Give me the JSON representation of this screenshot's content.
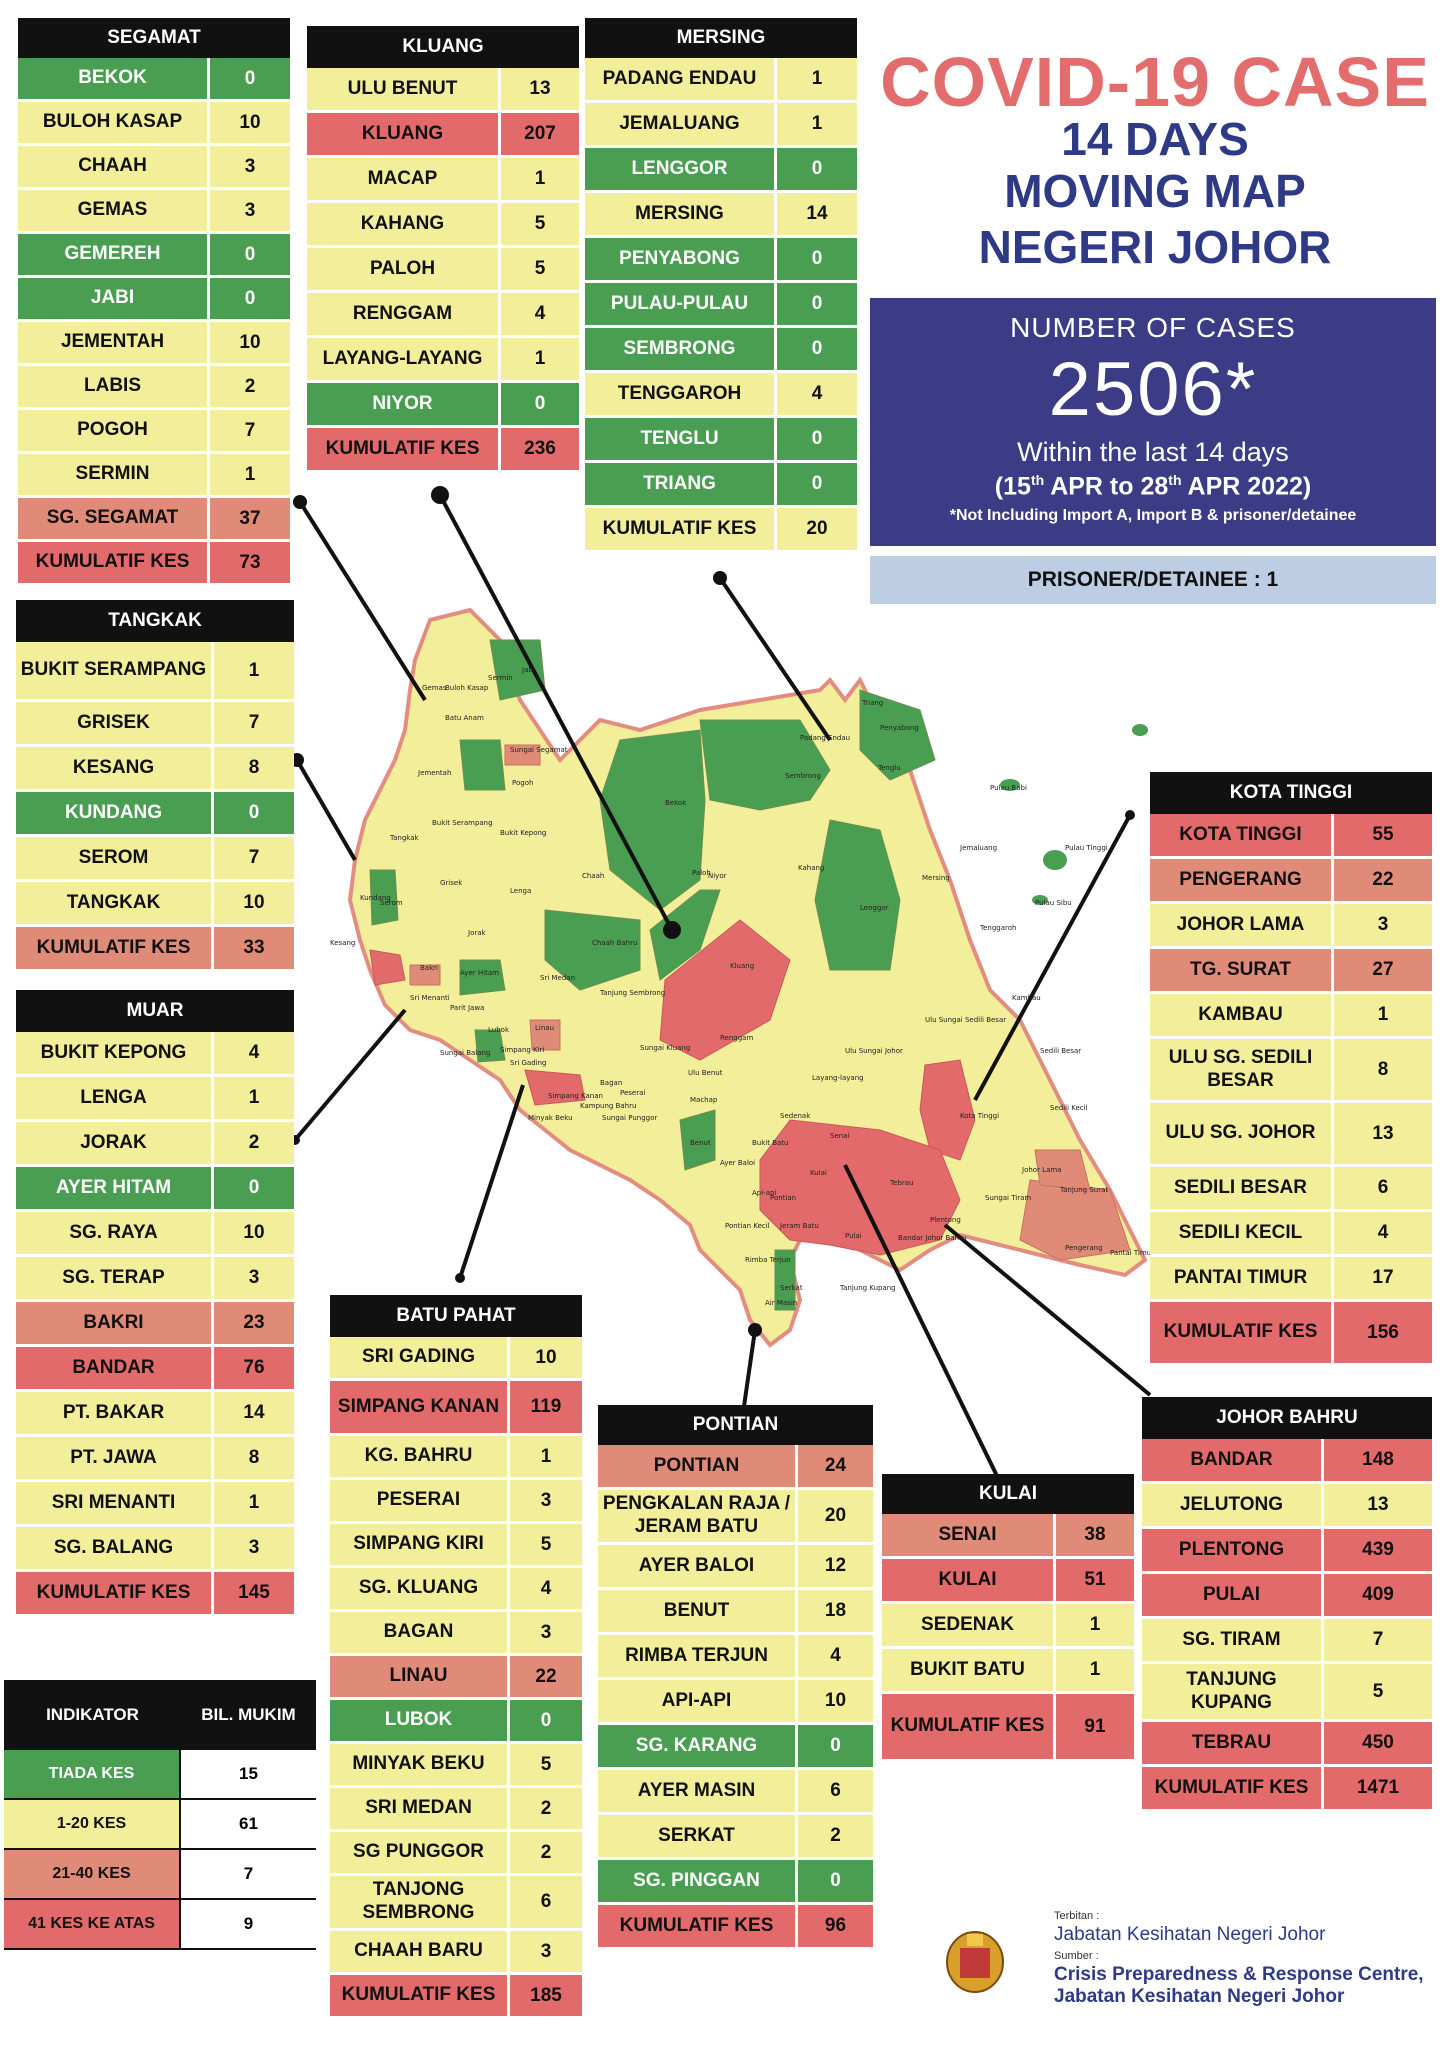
{
  "header": {
    "title": "COVID-19 CASE",
    "line2": "14 DAYS",
    "line3": "MOVING MAP",
    "line4": "NEGERI JOHOR"
  },
  "summary": {
    "label": "NUMBER OF CASES",
    "total": "2506*",
    "period_line1": "Within the last 14 days",
    "period_start": "15",
    "period_start_sup": "th",
    "period_start_month": "APR to",
    "period_end": "28",
    "period_end_sup": "th",
    "period_end_month": "APR 2022)",
    "period_open": "(",
    "note": "*Not Including Import A, Import B & prisoner/detainee",
    "prisoner": "PRISONER/DETAINEE : 1"
  },
  "colors": {
    "tiada_kes": "#4a9e52",
    "kes_1_20": "#f2ee9a",
    "kes_21_40": "#e08b78",
    "kes_41_atas": "#e36a6a",
    "title_red": "#e36d6d",
    "title_blue": "#2f3a86",
    "box_blue": "#3c3c86"
  },
  "districts": {
    "segamat": {
      "name": "SEGAMAT",
      "rows": [
        {
          "name": "BEKOK",
          "value": "0",
          "level": "green"
        },
        {
          "name": "BULOH KASAP",
          "value": "10",
          "level": "yellow"
        },
        {
          "name": "CHAAH",
          "value": "3",
          "level": "yellow"
        },
        {
          "name": "GEMAS",
          "value": "3",
          "level": "yellow"
        },
        {
          "name": "GEMEREH",
          "value": "0",
          "level": "green"
        },
        {
          "name": "JABI",
          "value": "0",
          "level": "green"
        },
        {
          "name": "JEMENTAH",
          "value": "10",
          "level": "yellow"
        },
        {
          "name": "LABIS",
          "value": "2",
          "level": "yellow"
        },
        {
          "name": "POGOH",
          "value": "7",
          "level": "yellow"
        },
        {
          "name": "SERMIN",
          "value": "1",
          "level": "yellow"
        },
        {
          "name": "SG. SEGAMAT",
          "value": "37",
          "level": "salmon"
        },
        {
          "name": "KUMULATIF KES",
          "value": "73",
          "level": "total"
        }
      ]
    },
    "kluang": {
      "name": "KLUANG",
      "rows": [
        {
          "name": "ULU BENUT",
          "value": "13",
          "level": "yellow"
        },
        {
          "name": "KLUANG",
          "value": "207",
          "level": "red"
        },
        {
          "name": "MACAP",
          "value": "1",
          "level": "yellow"
        },
        {
          "name": "KAHANG",
          "value": "5",
          "level": "yellow"
        },
        {
          "name": "PALOH",
          "value": "5",
          "level": "yellow"
        },
        {
          "name": "RENGGAM",
          "value": "4",
          "level": "yellow"
        },
        {
          "name": "LAYANG-LAYANG",
          "value": "1",
          "level": "yellow"
        },
        {
          "name": "NIYOR",
          "value": "0",
          "level": "green"
        },
        {
          "name": "KUMULATIF KES",
          "value": "236",
          "level": "total"
        }
      ]
    },
    "mersing": {
      "name": "MERSING",
      "rows": [
        {
          "name": "PADANG ENDAU",
          "value": "1",
          "level": "yellow"
        },
        {
          "name": "JEMALUANG",
          "value": "1",
          "level": "yellow"
        },
        {
          "name": "LENGGOR",
          "value": "0",
          "level": "green"
        },
        {
          "name": "MERSING",
          "value": "14",
          "level": "yellow"
        },
        {
          "name": "PENYABONG",
          "value": "0",
          "level": "green"
        },
        {
          "name": "PULAU-PULAU",
          "value": "0",
          "level": "green"
        },
        {
          "name": "SEMBRONG",
          "value": "0",
          "level": "green"
        },
        {
          "name": "TENGGAROH",
          "value": "4",
          "level": "yellow"
        },
        {
          "name": "TENGLU",
          "value": "0",
          "level": "green"
        },
        {
          "name": "TRIANG",
          "value": "0",
          "level": "green"
        },
        {
          "name": "KUMULATIF KES",
          "value": "20",
          "level": "yellow"
        }
      ]
    },
    "tangkak": {
      "name": "TANGKAK",
      "rows": [
        {
          "name": "BUKIT SERAMPANG",
          "value": "1",
          "level": "yellow"
        },
        {
          "name": "GRISEK",
          "value": "7",
          "level": "yellow"
        },
        {
          "name": "KESANG",
          "value": "8",
          "level": "yellow"
        },
        {
          "name": "KUNDANG",
          "value": "0",
          "level": "green"
        },
        {
          "name": "SEROM",
          "value": "7",
          "level": "yellow"
        },
        {
          "name": "TANGKAK",
          "value": "10",
          "level": "yellow"
        },
        {
          "name": "KUMULATIF KES",
          "value": "33",
          "level": "salmon"
        }
      ]
    },
    "muar": {
      "name": "MUAR",
      "rows": [
        {
          "name": "BUKIT KEPONG",
          "value": "4",
          "level": "yellow"
        },
        {
          "name": "LENGA",
          "value": "1",
          "level": "yellow"
        },
        {
          "name": "JORAK",
          "value": "2",
          "level": "yellow"
        },
        {
          "name": "AYER HITAM",
          "value": "0",
          "level": "green"
        },
        {
          "name": "SG. RAYA",
          "value": "10",
          "level": "yellow"
        },
        {
          "name": "SG. TERAP",
          "value": "3",
          "level": "yellow"
        },
        {
          "name": "BAKRI",
          "value": "23",
          "level": "salmon"
        },
        {
          "name": "BANDAR",
          "value": "76",
          "level": "red"
        },
        {
          "name": "PT. BAKAR",
          "value": "14",
          "level": "yellow"
        },
        {
          "name": "PT. JAWA",
          "value": "8",
          "level": "yellow"
        },
        {
          "name": "SRI MENANTI",
          "value": "1",
          "level": "yellow"
        },
        {
          "name": "SG. BALANG",
          "value": "3",
          "level": "yellow"
        },
        {
          "name": "KUMULATIF KES",
          "value": "145",
          "level": "total"
        }
      ]
    },
    "batu_pahat": {
      "name": "BATU PAHAT",
      "rows": [
        {
          "name": "SRI GADING",
          "value": "10",
          "level": "yellow"
        },
        {
          "name": "SIMPANG KANAN",
          "value": "119",
          "level": "red"
        },
        {
          "name": "KG. BAHRU",
          "value": "1",
          "level": "yellow"
        },
        {
          "name": "PESERAI",
          "value": "3",
          "level": "yellow"
        },
        {
          "name": "SIMPANG KIRI",
          "value": "5",
          "level": "yellow"
        },
        {
          "name": "SG. KLUANG",
          "value": "4",
          "level": "yellow"
        },
        {
          "name": "BAGAN",
          "value": "3",
          "level": "yellow"
        },
        {
          "name": "LINAU",
          "value": "22",
          "level": "salmon"
        },
        {
          "name": "LUBOK",
          "value": "0",
          "level": "green"
        },
        {
          "name": "MINYAK BEKU",
          "value": "5",
          "level": "yellow"
        },
        {
          "name": "SRI MEDAN",
          "value": "2",
          "level": "yellow"
        },
        {
          "name": "SG PUNGGOR",
          "value": "2",
          "level": "yellow"
        },
        {
          "name": "TANJONG SEMBRONG",
          "value": "6",
          "level": "yellow"
        },
        {
          "name": "CHAAH BARU",
          "value": "3",
          "level": "yellow"
        },
        {
          "name": "KUMULATIF KES",
          "value": "185",
          "level": "total"
        }
      ]
    },
    "pontian": {
      "name": "PONTIAN",
      "rows": [
        {
          "name": "PONTIAN",
          "value": "24",
          "level": "salmon"
        },
        {
          "name": "PENGKALAN RAJA / JERAM BATU",
          "value": "20",
          "level": "yellow"
        },
        {
          "name": "AYER BALOI",
          "value": "12",
          "level": "yellow"
        },
        {
          "name": "BENUT",
          "value": "18",
          "level": "yellow"
        },
        {
          "name": "RIMBA TERJUN",
          "value": "4",
          "level": "yellow"
        },
        {
          "name": "API-API",
          "value": "10",
          "level": "yellow"
        },
        {
          "name": "SG. KARANG",
          "value": "0",
          "level": "green"
        },
        {
          "name": "AYER MASIN",
          "value": "6",
          "level": "yellow"
        },
        {
          "name": "SERKAT",
          "value": "2",
          "level": "yellow"
        },
        {
          "name": "SG. PINGGAN",
          "value": "0",
          "level": "green"
        },
        {
          "name": "KUMULATIF KES",
          "value": "96",
          "level": "total"
        }
      ]
    },
    "kulai": {
      "name": "KULAI",
      "rows": [
        {
          "name": "SENAI",
          "value": "38",
          "level": "salmon"
        },
        {
          "name": "KULAI",
          "value": "51",
          "level": "red"
        },
        {
          "name": "SEDENAK",
          "value": "1",
          "level": "yellow"
        },
        {
          "name": "BUKIT BATU",
          "value": "1",
          "level": "yellow"
        },
        {
          "name": "KUMULATIF KES",
          "value": "91",
          "level": "total"
        }
      ]
    },
    "kota_tinggi": {
      "name": "KOTA TINGGI",
      "rows": [
        {
          "name": "KOTA TINGGI",
          "value": "55",
          "level": "red"
        },
        {
          "name": "PENGERANG",
          "value": "22",
          "level": "salmon"
        },
        {
          "name": "JOHOR LAMA",
          "value": "3",
          "level": "yellow"
        },
        {
          "name": "TG. SURAT",
          "value": "27",
          "level": "salmon"
        },
        {
          "name": "KAMBAU",
          "value": "1",
          "level": "yellow"
        },
        {
          "name": "ULU SG. SEDILI BESAR",
          "value": "8",
          "level": "yellow"
        },
        {
          "name": "ULU  SG. JOHOR",
          "value": "13",
          "level": "yellow"
        },
        {
          "name": "SEDILI BESAR",
          "value": "6",
          "level": "yellow"
        },
        {
          "name": "SEDILI KECIL",
          "value": "4",
          "level": "yellow"
        },
        {
          "name": "PANTAI TIMUR",
          "value": "17",
          "level": "yellow"
        },
        {
          "name": "KUMULATIF KES",
          "value": "156",
          "level": "total"
        }
      ]
    },
    "johor_bahru": {
      "name": "JOHOR BAHRU",
      "rows": [
        {
          "name": "BANDAR",
          "value": "148",
          "level": "red"
        },
        {
          "name": "JELUTONG",
          "value": "13",
          "level": "yellow"
        },
        {
          "name": "PLENTONG",
          "value": "439",
          "level": "red"
        },
        {
          "name": "PULAI",
          "value": "409",
          "level": "red"
        },
        {
          "name": "SG. TIRAM",
          "value": "7",
          "level": "yellow"
        },
        {
          "name": "TANJUNG KUPANG",
          "value": "5",
          "level": "yellow"
        },
        {
          "name": "TEBRAU",
          "value": "450",
          "level": "red"
        },
        {
          "name": "KUMULATIF KES",
          "value": "1471",
          "level": "total"
        }
      ]
    }
  },
  "indicator": {
    "col1": "INDIKATOR",
    "col2": "BIL. MUKIM",
    "rows": [
      {
        "label": "TIADA KES",
        "count": "15",
        "level": "green"
      },
      {
        "label": "1-20 KES",
        "count": "61",
        "level": "yellow"
      },
      {
        "label": "21-40 KES",
        "count": "7",
        "level": "salmon"
      },
      {
        "label": "41 KES KE ATAS",
        "count": "9",
        "level": "red"
      }
    ]
  },
  "footer": {
    "terbitan_label": "Terbitan :",
    "terbitan": "Jabatan Kesihatan Negeri Johor",
    "sumber_label": "Sumber :",
    "sumber1": "Crisis Preparedness & Response Centre,",
    "sumber2": "Jabatan Kesihatan Negeri Johor"
  },
  "map_labels": [
    "Gemas",
    "Buloh Kasap",
    "Sermin",
    "Batu Anam",
    "Jabi",
    "Sungai Segamat",
    "Jementah",
    "Pogoh",
    "Bukit Serampang",
    "Tangkak",
    "Serom",
    "Grisek",
    "Kundang",
    "Kesang",
    "Bakri",
    "Jorak",
    "Lenga",
    "Bukit Kepong",
    "Ayer Hitam",
    "Chaah",
    "Bekok",
    "Sembrong",
    "Padang Endau",
    "Triang",
    "Penyabong",
    "Tenglu",
    "Pulau Babi",
    "Pulau Tinggi",
    "Pulau Sibu",
    "Jemaluang",
    "Mersing",
    "Tenggaroh",
    "Lenggor",
    "Kahang",
    "Paloh",
    "Niyor",
    "Kluang",
    "Chaah Bahru",
    "Sri Medan",
    "Tanjung Sembrong",
    "Renggam",
    "Ulu Sungai Sedili Besar",
    "Ulu Sungai Johor",
    "Kambau",
    "Sedili Besar",
    "Sedili Kecil",
    "Layang-layang",
    "Machap",
    "Sedenak",
    "Kota Tinggi",
    "Johor Lama",
    "Tanjung Surat",
    "Pengerang",
    "Pantai Timur",
    "Senai",
    "Kulai",
    "Tebrau",
    "Plentong",
    "Sungai Tiram",
    "Bandar Johor Bahru",
    "Pulai",
    "Tanjung Kupang",
    "Pontian",
    "Ayer Baloi",
    "Benut",
    "Jeram Batu",
    "Api-api",
    "Serkat",
    "Rimba Terjun",
    "Air Masin",
    "Pontian Kecil",
    "Linau",
    "Simpang Kanan",
    "Minyak Beku",
    "Sri Gading",
    "Sungai Punggor",
    "Kampung Bahru",
    "Bagan",
    "Sungai Kluang",
    "Peserai",
    "Lubok",
    "Simpang Kiri",
    "Sri Menanti",
    "Parit Jawa",
    "Sungai Balang",
    "Bukit Batu",
    "Ulu Benut"
  ]
}
